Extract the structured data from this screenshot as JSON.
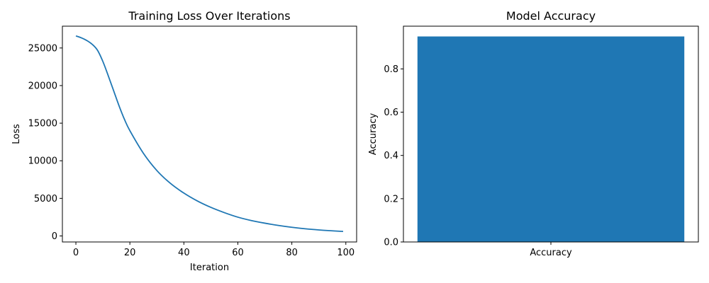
{
  "chart_data": [
    {
      "type": "line",
      "title": "Training Loss Over Iterations",
      "xlabel": "Iteration",
      "ylabel": "Loss",
      "xlim": [
        -5,
        104
      ],
      "ylim": [
        -800,
        27900
      ],
      "xticks": [
        0,
        20,
        40,
        60,
        80,
        100
      ],
      "yticks": [
        0,
        5000,
        10000,
        15000,
        20000,
        25000
      ],
      "grid": false,
      "color": "#1f77b4",
      "x": [
        0,
        2,
        4,
        6,
        8,
        10,
        12,
        14,
        16,
        18,
        20,
        25,
        30,
        35,
        40,
        45,
        50,
        55,
        60,
        65,
        70,
        75,
        80,
        85,
        90,
        95,
        99
      ],
      "y": [
        26600,
        26350,
        26000,
        25500,
        24700,
        23200,
        21300,
        19300,
        17300,
        15500,
        14000,
        11000,
        8700,
        7000,
        5700,
        4650,
        3800,
        3100,
        2500,
        2050,
        1700,
        1400,
        1150,
        950,
        800,
        680,
        600
      ]
    },
    {
      "type": "bar",
      "title": "Model Accuracy",
      "xlabel": "",
      "ylabel": "Accuracy",
      "categories": [
        "Accuracy"
      ],
      "values": [
        0.95
      ],
      "ylim": [
        0,
        0.9975
      ],
      "yticks": [
        0.0,
        0.2,
        0.4,
        0.6,
        0.8
      ],
      "grid": false,
      "color": "#1f77b4"
    }
  ]
}
